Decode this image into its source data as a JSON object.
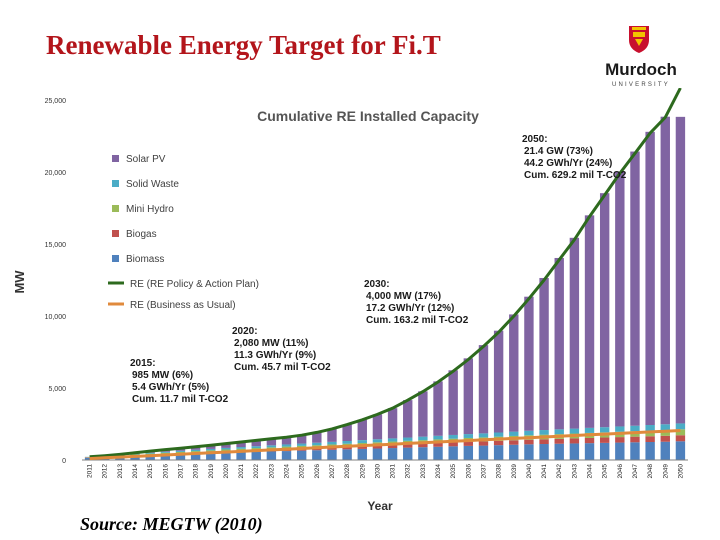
{
  "slide": {
    "title": "Renewable Energy Target for Fi.T",
    "source": "Source: MEGTW (2010)",
    "logo_name": "Murdoch",
    "logo_sub": "UNIVERSITY",
    "logo_icon": "crest-icon"
  },
  "colors": {
    "title": "#b3151b",
    "solar": "#8064a2",
    "solid_waste": "#4bacc6",
    "mini_hydro": "#9bbb59",
    "biogas": "#c0504d",
    "biomass": "#4f81bd",
    "re_policy": "#2d6a1e",
    "re_bau": "#e08a3c"
  },
  "chart_data": {
    "type": "bar",
    "stacked": true,
    "title": "Cumulative RE Installed Capacity",
    "xlabel": "Year",
    "ylabel": "MW",
    "ylim": [
      0,
      25000
    ],
    "yticks": [
      0,
      5000,
      10000,
      15000,
      20000,
      25000
    ],
    "ytick_labels": [
      "0",
      "5,000",
      "10,000",
      "15,000",
      "20,000",
      "25,000"
    ],
    "grid": false,
    "legend_position": "top-left",
    "categories": [
      "2011",
      "2012",
      "2013",
      "2014",
      "2015",
      "2016",
      "2017",
      "2018",
      "2019",
      "2020",
      "2021",
      "2022",
      "2023",
      "2024",
      "2025",
      "2026",
      "2027",
      "2028",
      "2029",
      "2030",
      "2031",
      "2032",
      "2033",
      "2034",
      "2035",
      "2036",
      "2037",
      "2038",
      "2039",
      "2040",
      "2041",
      "2042",
      "2043",
      "2044",
      "2045",
      "2046",
      "2047",
      "2048",
      "2049",
      "2050"
    ],
    "series": [
      {
        "name": "Biomass",
        "color": "#4f81bd",
        "values": [
          150,
          190,
          230,
          270,
          310,
          350,
          390,
          430,
          460,
          500,
          530,
          560,
          590,
          620,
          650,
          680,
          710,
          740,
          770,
          800,
          830,
          860,
          890,
          920,
          950,
          980,
          1000,
          1030,
          1060,
          1090,
          1110,
          1130,
          1150,
          1170,
          1190,
          1210,
          1230,
          1250,
          1270,
          1300
        ]
      },
      {
        "name": "Biogas",
        "color": "#c0504d",
        "values": [
          30,
          40,
          50,
          60,
          70,
          80,
          90,
          100,
          110,
          120,
          130,
          140,
          150,
          160,
          170,
          180,
          190,
          200,
          210,
          220,
          230,
          240,
          250,
          260,
          270,
          280,
          290,
          300,
          310,
          320,
          330,
          340,
          350,
          360,
          370,
          380,
          390,
          400,
          410,
          420
        ]
      },
      {
        "name": "Mini Hydro",
        "color": "#9bbb59",
        "values": [
          20,
          30,
          40,
          50,
          60,
          70,
          80,
          90,
          100,
          110,
          120,
          130,
          140,
          150,
          160,
          170,
          180,
          190,
          200,
          210,
          220,
          230,
          240,
          250,
          260,
          270,
          280,
          290,
          300,
          310,
          320,
          330,
          340,
          350,
          360,
          370,
          380,
          390,
          400,
          410
        ]
      },
      {
        "name": "Solid Waste",
        "color": "#4bacc6",
        "values": [
          20,
          30,
          40,
          50,
          60,
          70,
          80,
          90,
          100,
          110,
          120,
          130,
          140,
          150,
          160,
          170,
          180,
          190,
          200,
          210,
          220,
          230,
          240,
          250,
          260,
          270,
          280,
          290,
          300,
          310,
          320,
          330,
          340,
          350,
          360,
          370,
          380,
          390,
          400,
          410
        ]
      },
      {
        "name": "Solar PV",
        "color": "#8064a2",
        "values": [
          0,
          10,
          30,
          70,
          120,
          150,
          180,
          210,
          250,
          300,
          350,
          400,
          450,
          500,
          580,
          720,
          900,
          1140,
          1410,
          1730,
          2100,
          2600,
          3150,
          3780,
          4490,
          5260,
          6130,
          7070,
          8140,
          9310,
          10560,
          11900,
          13250,
          14760,
          16250,
          17690,
          19040,
          20360,
          21360,
          21290
        ]
      }
    ],
    "lines": [
      {
        "name": "RE (RE Policy & Action Plan)",
        "color": "#2d6a1e",
        "values": [
          220,
          300,
          390,
          500,
          620,
          720,
          820,
          920,
          1020,
          1140,
          1250,
          1360,
          1470,
          1580,
          1720,
          1920,
          2160,
          2460,
          2790,
          3170,
          3600,
          4150,
          4750,
          5420,
          6170,
          6980,
          7890,
          8870,
          9990,
          11200,
          12500,
          13900,
          15300,
          16900,
          18400,
          19900,
          21300,
          22700,
          23800,
          25830
        ]
      },
      {
        "name": "RE (Business as Usual)",
        "color": "#e08a3c",
        "values": [
          100,
          150,
          200,
          250,
          300,
          350,
          400,
          450,
          500,
          550,
          600,
          650,
          700,
          750,
          800,
          850,
          900,
          950,
          1000,
          1050,
          1100,
          1150,
          1200,
          1250,
          1300,
          1350,
          1400,
          1450,
          1500,
          1550,
          1600,
          1650,
          1700,
          1750,
          1800,
          1850,
          1900,
          1950,
          2000,
          2050
        ]
      }
    ],
    "annotations": [
      {
        "year": "2015",
        "lines": [
          "2015:",
          "985 MW (6%)",
          "5.4 GWh/Yr (5%)",
          "Cum. 11.7 mil T-CO2"
        ]
      },
      {
        "year": "2020",
        "lines": [
          "2020:",
          "2,080 MW (11%)",
          "11.3 GWh/Yr (9%)",
          "Cum. 45.7 mil T-CO2"
        ]
      },
      {
        "year": "2030",
        "lines": [
          "2030:",
          "4,000 MW (17%)",
          "17.2 GWh/Yr (12%)",
          "Cum. 163.2 mil T-CO2"
        ]
      },
      {
        "year": "2050",
        "lines": [
          "2050:",
          "21.4 GW (73%)",
          "44.2 GWh/Yr (24%)",
          "Cum. 629.2 mil T-CO2"
        ]
      }
    ]
  }
}
